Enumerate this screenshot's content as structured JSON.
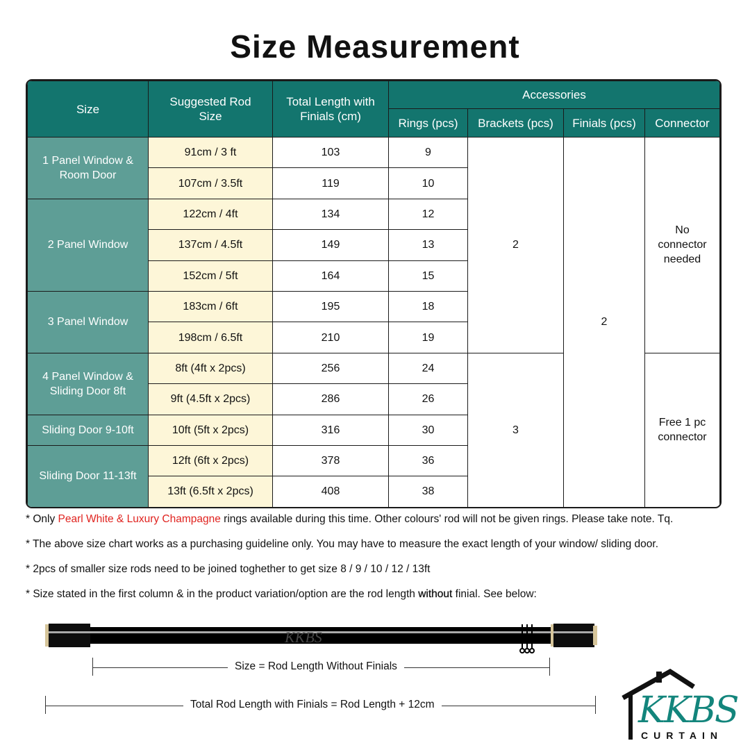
{
  "title": "Size Measurement",
  "headers": {
    "size": "Size",
    "rod": "Suggested Rod Size",
    "total": "Total Length with Finials (cm)",
    "accessories": "Accessories",
    "rings": "Rings (pcs)",
    "brackets": "Brackets (pcs)",
    "finials": "Finials (pcs)",
    "connector": "Connector"
  },
  "groups": [
    {
      "label": "1 Panel Window & Room Door",
      "rows": [
        {
          "rod": "91cm / 3 ft",
          "total": "103",
          "rings": "9"
        },
        {
          "rod": "107cm / 3.5ft",
          "total": "119",
          "rings": "10"
        }
      ]
    },
    {
      "label": "2 Panel Window",
      "rows": [
        {
          "rod": "122cm / 4ft",
          "total": "134",
          "rings": "12"
        },
        {
          "rod": "137cm / 4.5ft",
          "total": "149",
          "rings": "13"
        },
        {
          "rod": "152cm / 5ft",
          "total": "164",
          "rings": "15"
        }
      ]
    },
    {
      "label": "3 Panel Window",
      "rows": [
        {
          "rod": "183cm / 6ft",
          "total": "195",
          "rings": "18"
        },
        {
          "rod": "198cm / 6.5ft",
          "total": "210",
          "rings": "19"
        }
      ]
    },
    {
      "label": "4 Panel Window & Sliding Door 8ft",
      "rows": [
        {
          "rod": "8ft (4ft x 2pcs)",
          "total": "256",
          "rings": "24"
        },
        {
          "rod": "9ft (4.5ft x 2pcs)",
          "total": "286",
          "rings": "26"
        }
      ]
    },
    {
      "label": "Sliding Door 9-10ft",
      "rows": [
        {
          "rod": "10ft (5ft x 2pcs)",
          "total": "316",
          "rings": "30"
        }
      ]
    },
    {
      "label": "Sliding Door 11-13ft",
      "rows": [
        {
          "rod": "12ft (6ft x 2pcs)",
          "total": "378",
          "rings": "36"
        },
        {
          "rod": "13ft (6.5ft x 2pcs)",
          "total": "408",
          "rings": "38"
        }
      ]
    }
  ],
  "brackets": [
    "2",
    "3"
  ],
  "finials": "2",
  "connector": [
    "No connector needed",
    "Free 1 pc connector"
  ],
  "notes": {
    "n1_a": "* Only ",
    "n1_red": "Pearl White & Luxury Champagne",
    "n1_b": " rings available during this time. Other colours' rod will not be given rings. Please take note. Tq.",
    "n2": "*  The above size chart works as a purchasing guideline only. You may have to measure the exact length of your window/ sliding door.",
    "n3": "* 2pcs of smaller size rods need to be joined toghether to get size 8 / 9 / 10 / 12 / 13ft",
    "n4_a": "* Size stated in the first column & in the product variation/option are the rod length ",
    "n4_bold": "without",
    "n4_b": " finial. See below:"
  },
  "diagram": {
    "size_label": "Size = Rod Length Without Finials",
    "total_label": "Total Rod Length with Finials = Rod Length + 12cm",
    "watermark": "KKBS"
  },
  "logo": {
    "name": "KKBS",
    "sub": "CURTAIN"
  },
  "colors": {
    "header": "#13756e",
    "size_col": "#5e9e96",
    "rod_col": "#fdf6d8",
    "highlight": "#e0231f"
  }
}
